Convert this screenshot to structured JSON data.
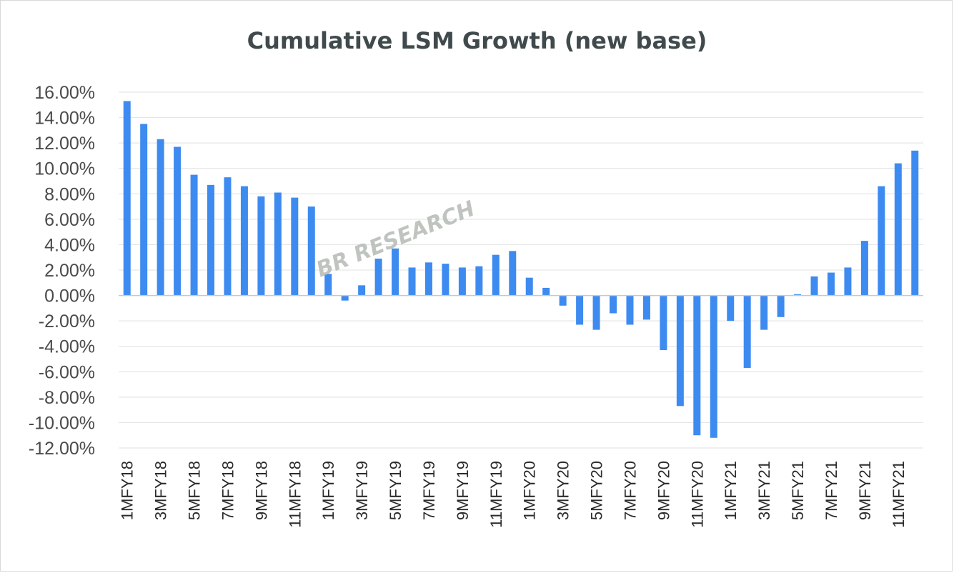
{
  "chart_data": {
    "type": "bar",
    "title": "Cumulative LSM Growth (new base)",
    "xlabel": "",
    "ylabel": "",
    "ylim": [
      -12,
      16
    ],
    "y_ticks": [
      "16.00%",
      "14.00%",
      "12.00%",
      "10.00%",
      "8.00%",
      "6.00%",
      "4.00%",
      "2.00%",
      "0.00%",
      "-2.00%",
      "-4.00%",
      "-6.00%",
      "-8.00%",
      "-10.00%",
      "-12.00%"
    ],
    "y_tick_values": [
      16,
      14,
      12,
      10,
      8,
      6,
      4,
      2,
      0,
      -2,
      -4,
      -6,
      -8,
      -10,
      -12
    ],
    "grid": true,
    "bar_color": "#3d8bf0",
    "categories": [
      "1MFY18",
      "2MFY18",
      "3MFY18",
      "4MFY18",
      "5MFY18",
      "6MFY18",
      "7MFY18",
      "8MFY18",
      "9MFY18",
      "10MFY18",
      "11MFY18",
      "12MFY18",
      "1MFY19",
      "2MFY19",
      "3MFY19",
      "4MFY19",
      "5MFY19",
      "6MFY19",
      "7MFY19",
      "8MFY19",
      "9MFY19",
      "10MFY19",
      "11MFY19",
      "12MFY19",
      "1MFY20",
      "2MFY20",
      "3MFY20",
      "4MFY20",
      "5MFY20",
      "6MFY20",
      "7MFY20",
      "8MFY20",
      "9MFY20",
      "10MFY20",
      "11MFY20",
      "12MFY20",
      "1MFY21",
      "2MFY21",
      "3MFY21",
      "4MFY21",
      "5MFY21",
      "6MFY21",
      "7MFY21",
      "8MFY21",
      "9MFY21",
      "10MFY21",
      "11MFY21",
      "12MFY21"
    ],
    "x_tick_labels": [
      "1MFY18",
      "3MFY18",
      "5MFY18",
      "7MFY18",
      "9MFY18",
      "11MFY18",
      "1MFY19",
      "3MFY19",
      "5MFY19",
      "7MFY19",
      "9MFY19",
      "11MFY19",
      "1MFY20",
      "3MFY20",
      "5MFY20",
      "7MFY20",
      "9MFY20",
      "11MFY20",
      "1MFY21",
      "3MFY21",
      "5MFY21",
      "7MFY21",
      "9MFY21",
      "11MFY21"
    ],
    "values": [
      15.3,
      13.5,
      12.3,
      11.7,
      9.5,
      8.7,
      9.3,
      8.6,
      7.8,
      8.1,
      7.7,
      7.0,
      1.7,
      -0.4,
      0.8,
      2.9,
      3.7,
      2.2,
      2.6,
      2.5,
      2.2,
      2.3,
      3.2,
      3.5,
      1.4,
      0.6,
      -0.8,
      -2.3,
      -2.7,
      -1.4,
      -2.3,
      -1.9,
      -4.3,
      -8.7,
      -11.0,
      -11.2,
      -2.0,
      -5.7,
      -2.7,
      -1.7,
      0.1,
      1.5,
      1.8,
      2.2,
      4.3,
      8.6,
      10.4,
      11.4
    ]
  },
  "watermark": "BR RESEARCH"
}
